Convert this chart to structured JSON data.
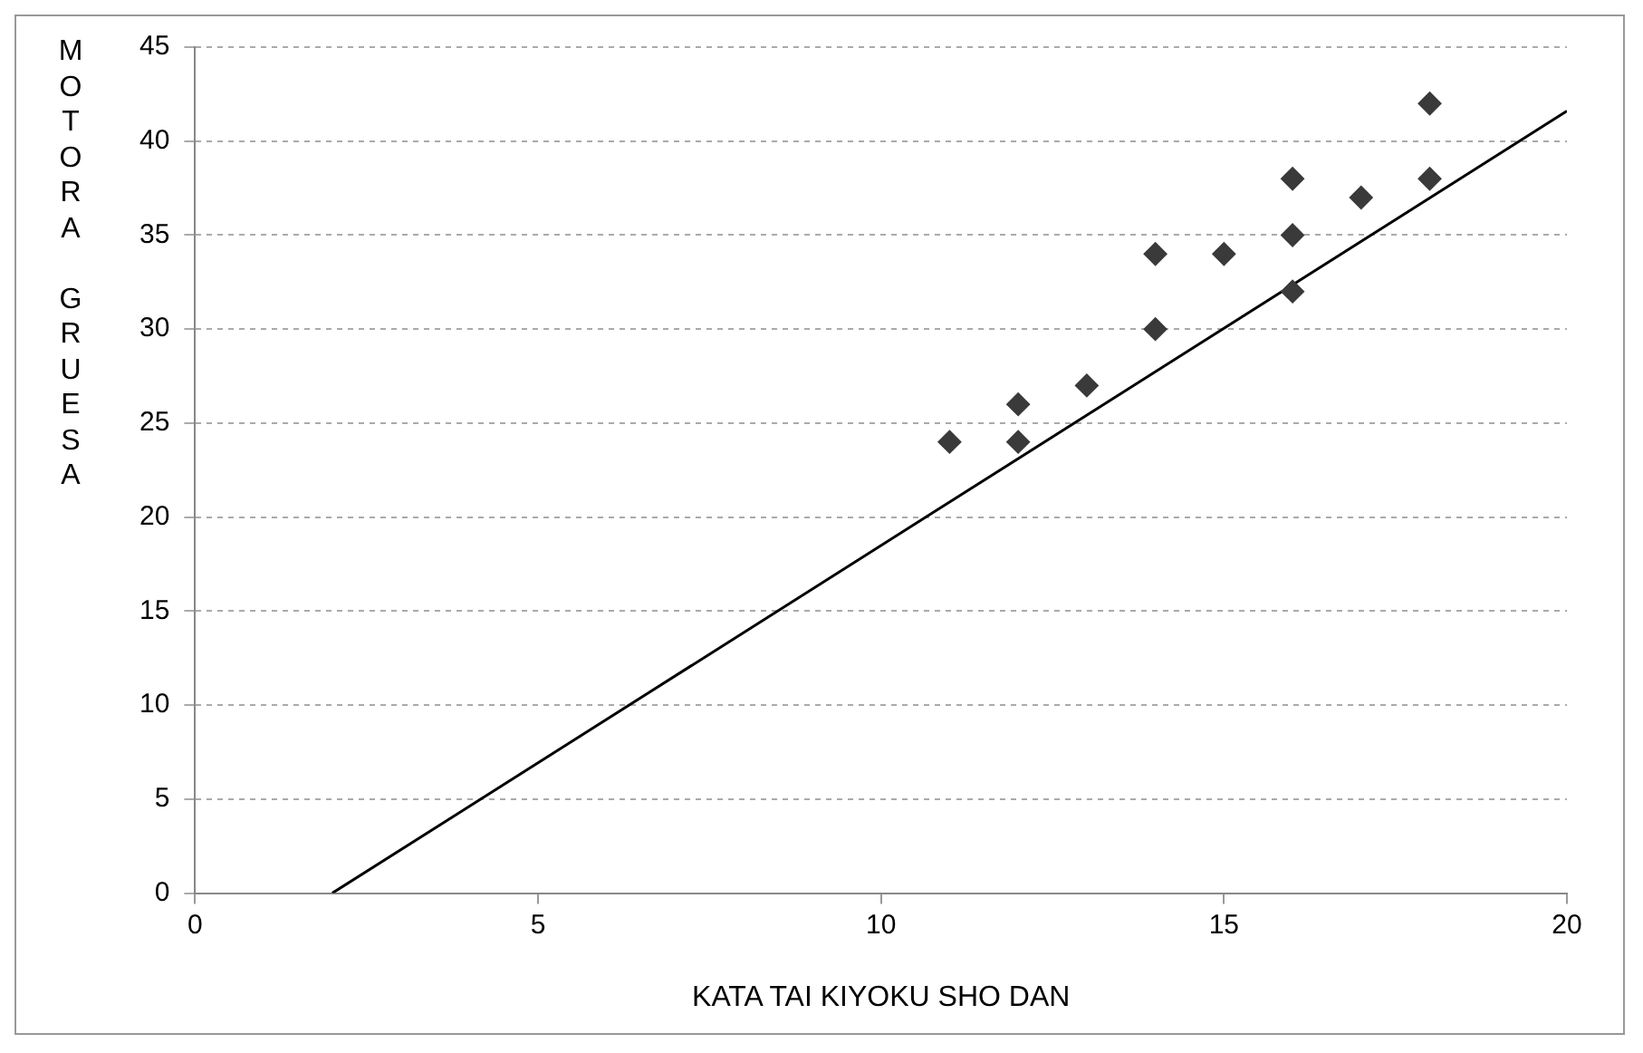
{
  "chart_data": {
    "type": "scatter",
    "xlabel": "KATA TAI KIYOKU SHO DAN",
    "ylabel": "MOTORA GRUESA",
    "xlim": [
      0,
      20
    ],
    "xticks": [
      0,
      5,
      10,
      15,
      20
    ],
    "ylim": [
      0,
      45
    ],
    "yticks": [
      0,
      5,
      10,
      15,
      20,
      25,
      30,
      35,
      40,
      45
    ],
    "grid": "y",
    "series": [
      {
        "color": "#3a3a3a",
        "marker": "diamond",
        "x": [
          11,
          12,
          12,
          13,
          14,
          14,
          15,
          16,
          16,
          16,
          17,
          18,
          18
        ],
        "values": [
          24,
          26,
          24,
          27,
          34,
          30,
          34,
          38,
          35,
          32,
          37,
          42,
          38
        ]
      },
      {
        "type": "line",
        "marker": "none",
        "color": "#000000",
        "x": [
          2,
          20
        ],
        "values": [
          0,
          41.6
        ]
      }
    ]
  }
}
